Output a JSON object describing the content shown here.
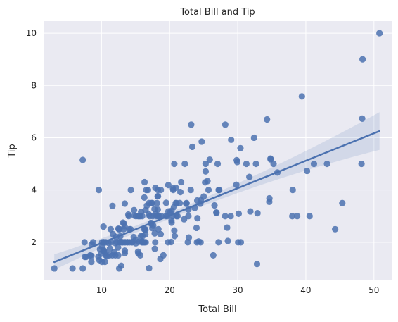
{
  "chart_data": {
    "type": "scatter",
    "title": "Total Bill and Tip",
    "xlabel": "Total Bill",
    "ylabel": "Tip",
    "xlim": [
      1.5,
      52.6
    ],
    "ylim": [
      0.54,
      10.46
    ],
    "xticks": [
      "10",
      "20",
      "30",
      "40",
      "50"
    ],
    "yticks": [
      "2",
      "4",
      "6",
      "8",
      "10"
    ],
    "grid": true,
    "colors": {
      "background": "#eaeaf2",
      "grid": "#ffffff",
      "point": "#4c72b0",
      "line": "#4c72b0",
      "band": "#4c72b0"
    },
    "regression": {
      "slope": 0.105,
      "intercept": 0.92,
      "ci_halfwidth_min": 0.12,
      "ci_halfwidth_max": 0.72
    },
    "points": [
      [
        16.99,
        1.01
      ],
      [
        10.34,
        1.66
      ],
      [
        21.01,
        3.5
      ],
      [
        23.68,
        3.31
      ],
      [
        24.59,
        3.61
      ],
      [
        25.29,
        4.71
      ],
      [
        8.77,
        2.0
      ],
      [
        26.88,
        3.12
      ],
      [
        15.04,
        1.96
      ],
      [
        14.78,
        3.23
      ],
      [
        10.27,
        1.71
      ],
      [
        35.26,
        5.0
      ],
      [
        15.42,
        1.57
      ],
      [
        18.43,
        3.0
      ],
      [
        14.83,
        3.02
      ],
      [
        21.58,
        3.92
      ],
      [
        10.33,
        1.67
      ],
      [
        16.29,
        3.71
      ],
      [
        16.97,
        3.5
      ],
      [
        20.65,
        3.35
      ],
      [
        17.92,
        4.08
      ],
      [
        20.29,
        2.75
      ],
      [
        15.77,
        2.23
      ],
      [
        39.42,
        7.58
      ],
      [
        19.82,
        3.18
      ],
      [
        17.81,
        2.34
      ],
      [
        13.37,
        2.0
      ],
      [
        12.69,
        2.0
      ],
      [
        21.7,
        4.3
      ],
      [
        19.65,
        3.0
      ],
      [
        9.55,
        1.45
      ],
      [
        18.35,
        2.5
      ],
      [
        15.06,
        3.0
      ],
      [
        20.69,
        2.45
      ],
      [
        17.78,
        3.27
      ],
      [
        24.06,
        3.6
      ],
      [
        16.31,
        2.0
      ],
      [
        16.93,
        3.07
      ],
      [
        18.69,
        2.31
      ],
      [
        31.27,
        5.0
      ],
      [
        16.04,
        2.24
      ],
      [
        17.46,
        2.54
      ],
      [
        13.94,
        3.06
      ],
      [
        9.68,
        1.32
      ],
      [
        30.4,
        5.6
      ],
      [
        18.29,
        3.0
      ],
      [
        22.23,
        5.0
      ],
      [
        32.4,
        6.0
      ],
      [
        28.55,
        2.05
      ],
      [
        18.04,
        3.0
      ],
      [
        12.54,
        2.5
      ],
      [
        10.29,
        2.6
      ],
      [
        34.81,
        5.2
      ],
      [
        9.94,
        1.56
      ],
      [
        25.56,
        4.34
      ],
      [
        19.49,
        3.51
      ],
      [
        38.01,
        3.0
      ],
      [
        26.41,
        1.5
      ],
      [
        11.24,
        1.76
      ],
      [
        48.27,
        6.73
      ],
      [
        20.29,
        3.21
      ],
      [
        13.81,
        2.0
      ],
      [
        11.02,
        1.98
      ],
      [
        18.29,
        3.76
      ],
      [
        17.59,
        2.64
      ],
      [
        20.08,
        3.15
      ],
      [
        16.45,
        2.47
      ],
      [
        3.07,
        1.0
      ],
      [
        20.23,
        2.01
      ],
      [
        15.01,
        2.09
      ],
      [
        12.02,
        1.97
      ],
      [
        17.07,
        3.0
      ],
      [
        26.86,
        3.14
      ],
      [
        25.28,
        5.0
      ],
      [
        14.73,
        2.2
      ],
      [
        10.51,
        1.25
      ],
      [
        17.92,
        3.08
      ],
      [
        27.2,
        4.0
      ],
      [
        22.76,
        3.0
      ],
      [
        17.29,
        2.71
      ],
      [
        19.44,
        3.0
      ],
      [
        16.66,
        3.4
      ],
      [
        10.07,
        1.83
      ],
      [
        32.68,
        5.0
      ],
      [
        15.98,
        2.03
      ],
      [
        34.83,
        5.17
      ],
      [
        13.03,
        2.0
      ],
      [
        18.28,
        4.0
      ],
      [
        24.71,
        5.85
      ],
      [
        21.16,
        3.0
      ],
      [
        28.97,
        3.0
      ],
      [
        22.49,
        3.5
      ],
      [
        5.75,
        1.0
      ],
      [
        16.32,
        4.3
      ],
      [
        22.75,
        3.25
      ],
      [
        40.17,
        4.73
      ],
      [
        27.28,
        4.0
      ],
      [
        12.03,
        1.5
      ],
      [
        21.01,
        3.0
      ],
      [
        12.46,
        1.5
      ],
      [
        11.35,
        2.5
      ],
      [
        15.38,
        3.0
      ],
      [
        44.3,
        2.5
      ],
      [
        22.42,
        3.48
      ],
      [
        20.92,
        4.08
      ],
      [
        15.36,
        1.64
      ],
      [
        20.49,
        4.06
      ],
      [
        25.21,
        4.29
      ],
      [
        18.24,
        3.76
      ],
      [
        14.31,
        4.0
      ],
      [
        14.0,
        3.0
      ],
      [
        7.25,
        1.0
      ],
      [
        38.07,
        4.0
      ],
      [
        23.95,
        2.55
      ],
      [
        25.71,
        4.0
      ],
      [
        17.31,
        3.5
      ],
      [
        29.93,
        5.07
      ],
      [
        10.65,
        1.5
      ],
      [
        12.43,
        1.8
      ],
      [
        24.08,
        2.92
      ],
      [
        11.69,
        2.31
      ],
      [
        13.42,
        1.68
      ],
      [
        14.26,
        2.5
      ],
      [
        15.95,
        2.0
      ],
      [
        12.48,
        2.52
      ],
      [
        29.8,
        4.2
      ],
      [
        8.52,
        1.48
      ],
      [
        14.52,
        2.0
      ],
      [
        11.38,
        2.0
      ],
      [
        22.82,
        2.18
      ],
      [
        19.08,
        1.5
      ],
      [
        20.27,
        2.83
      ],
      [
        11.17,
        1.5
      ],
      [
        12.26,
        2.0
      ],
      [
        18.26,
        3.25
      ],
      [
        8.51,
        1.25
      ],
      [
        10.33,
        2.0
      ],
      [
        14.15,
        2.0
      ],
      [
        16.0,
        2.0
      ],
      [
        13.16,
        2.75
      ],
      [
        17.47,
        3.5
      ],
      [
        34.3,
        6.7
      ],
      [
        41.19,
        5.0
      ],
      [
        27.05,
        5.0
      ],
      [
        16.43,
        2.3
      ],
      [
        8.35,
        1.5
      ],
      [
        18.64,
        1.36
      ],
      [
        11.87,
        1.63
      ],
      [
        9.78,
        1.73
      ],
      [
        7.51,
        2.0
      ],
      [
        14.07,
        2.5
      ],
      [
        13.13,
        2.0
      ],
      [
        17.26,
        2.74
      ],
      [
        24.55,
        2.0
      ],
      [
        19.77,
        2.0
      ],
      [
        29.85,
        5.14
      ],
      [
        48.17,
        5.0
      ],
      [
        25.0,
        3.75
      ],
      [
        13.39,
        2.61
      ],
      [
        16.49,
        2.0
      ],
      [
        21.5,
        3.5
      ],
      [
        12.66,
        2.5
      ],
      [
        16.21,
        2.0
      ],
      [
        13.81,
        2.0
      ],
      [
        17.51,
        3.0
      ],
      [
        24.52,
        3.48
      ],
      [
        20.76,
        2.24
      ],
      [
        31.71,
        4.5
      ],
      [
        10.59,
        1.61
      ],
      [
        10.63,
        2.0
      ],
      [
        50.81,
        10.0
      ],
      [
        15.81,
        3.16
      ],
      [
        7.25,
        5.15
      ],
      [
        31.85,
        3.18
      ],
      [
        16.82,
        4.0
      ],
      [
        32.9,
        3.11
      ],
      [
        17.89,
        2.0
      ],
      [
        14.48,
        2.0
      ],
      [
        9.6,
        4.0
      ],
      [
        34.63,
        3.55
      ],
      [
        34.65,
        3.68
      ],
      [
        23.33,
        5.65
      ],
      [
        45.35,
        3.5
      ],
      [
        23.17,
        6.5
      ],
      [
        40.55,
        3.0
      ],
      [
        20.69,
        5.0
      ],
      [
        20.9,
        3.5
      ],
      [
        30.46,
        2.0
      ],
      [
        18.15,
        3.5
      ],
      [
        23.1,
        4.0
      ],
      [
        15.69,
        1.5
      ],
      [
        19.81,
        4.19
      ],
      [
        28.44,
        2.56
      ],
      [
        15.48,
        2.02
      ],
      [
        16.58,
        4.0
      ],
      [
        7.56,
        1.44
      ],
      [
        10.34,
        2.0
      ],
      [
        43.11,
        5.0
      ],
      [
        13.0,
        2.0
      ],
      [
        13.51,
        2.0
      ],
      [
        18.71,
        4.0
      ],
      [
        12.74,
        2.01
      ],
      [
        13.0,
        2.0
      ],
      [
        16.4,
        2.5
      ],
      [
        20.53,
        4.0
      ],
      [
        16.47,
        3.23
      ],
      [
        26.59,
        3.41
      ],
      [
        38.73,
        3.0
      ],
      [
        24.27,
        2.03
      ],
      [
        12.76,
        2.23
      ],
      [
        30.06,
        2.0
      ],
      [
        25.89,
        5.16
      ],
      [
        48.33,
        9.0
      ],
      [
        13.27,
        2.5
      ],
      [
        28.17,
        6.5
      ],
      [
        12.9,
        1.1
      ],
      [
        28.15,
        3.0
      ],
      [
        11.59,
        1.5
      ],
      [
        7.74,
        1.44
      ],
      [
        30.14,
        3.09
      ],
      [
        12.16,
        2.2
      ],
      [
        13.42,
        3.48
      ],
      [
        8.58,
        1.92
      ],
      [
        15.98,
        3.0
      ],
      [
        13.42,
        1.58
      ],
      [
        16.27,
        2.5
      ],
      [
        10.09,
        2.0
      ],
      [
        20.45,
        3.0
      ],
      [
        13.28,
        2.72
      ],
      [
        22.12,
        2.88
      ],
      [
        24.01,
        2.0
      ],
      [
        15.69,
        3.0
      ],
      [
        11.61,
        3.39
      ],
      [
        10.77,
        1.47
      ],
      [
        15.53,
        3.0
      ],
      [
        10.07,
        1.25
      ],
      [
        12.6,
        1.0
      ],
      [
        32.83,
        1.17
      ],
      [
        35.83,
        4.67
      ],
      [
        29.03,
        5.92
      ],
      [
        27.18,
        2.0
      ],
      [
        22.67,
        2.0
      ],
      [
        17.82,
        1.75
      ],
      [
        18.78,
        3.0
      ]
    ]
  }
}
